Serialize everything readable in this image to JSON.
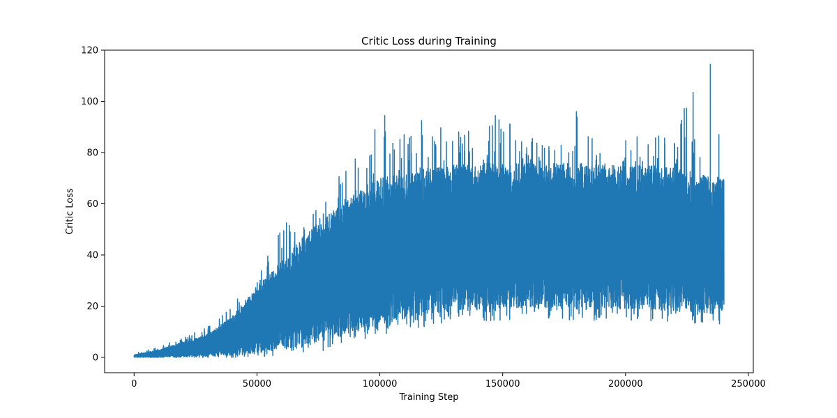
{
  "chart_data": {
    "type": "line",
    "title": "Critic Loss during Training",
    "xlabel": "Training Step",
    "ylabel": "Critic Loss",
    "xlim": [
      -12000,
      252000
    ],
    "ylim": [
      -6,
      120
    ],
    "xticks": [
      0,
      50000,
      100000,
      150000,
      200000,
      250000
    ],
    "yticks": [
      0,
      20,
      40,
      60,
      80,
      100,
      120
    ],
    "grid": false,
    "legend": "none",
    "series": [
      {
        "color": "#1f77b4",
        "x_range": [
          0,
          240000
        ],
        "envelope": {
          "x": [
            0,
            10000,
            20000,
            30000,
            40000,
            50000,
            60000,
            70000,
            80000,
            90000,
            100000,
            110000,
            120000,
            130000,
            140000,
            150000,
            160000,
            170000,
            180000,
            190000,
            200000,
            210000,
            220000,
            230000,
            240000
          ],
          "lower": [
            0,
            0,
            0.1,
            0.3,
            0.8,
            1.8,
            3,
            4.5,
            7,
            10,
            13,
            15,
            17,
            18,
            18.5,
            19,
            19,
            19,
            19,
            19,
            19,
            18.5,
            18,
            17.5,
            17
          ],
          "upper": [
            1,
            3,
            6,
            9,
            16,
            28,
            38,
            48,
            57,
            64,
            70,
            72,
            74,
            75,
            76,
            76,
            76,
            76,
            76,
            75,
            75,
            75,
            74,
            72,
            70
          ],
          "peak": [
            2,
            4,
            8,
            12,
            21,
            30,
            52,
            52,
            67,
            78,
            89,
            87,
            92,
            89,
            91,
            95,
            88,
            86,
            96,
            87,
            85,
            90,
            87,
            114,
            87
          ]
        },
        "spikes": [
          {
            "x": 62000,
            "y": 52.5
          },
          {
            "x": 84000,
            "y": 67.5
          },
          {
            "x": 90000,
            "y": 77.5
          },
          {
            "x": 98000,
            "y": 89
          },
          {
            "x": 102000,
            "y": 94.5
          },
          {
            "x": 117000,
            "y": 92.5
          },
          {
            "x": 147000,
            "y": 94.5
          },
          {
            "x": 180000,
            "y": 96
          },
          {
            "x": 234500,
            "y": 114.5
          },
          {
            "x": 238000,
            "y": 87
          }
        ],
        "final_value": 69.5
      }
    ]
  }
}
